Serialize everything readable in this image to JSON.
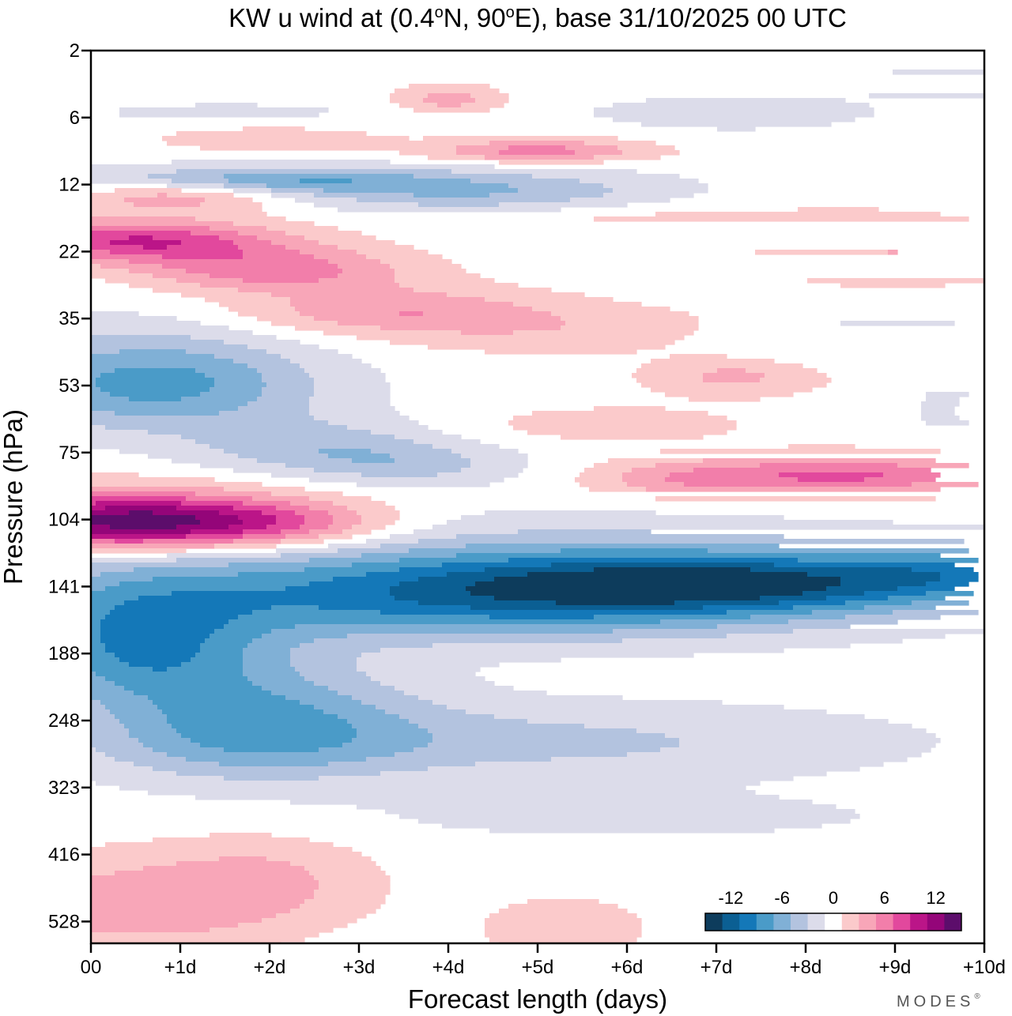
{
  "chart_data": {
    "type": "heatmap",
    "title": "KW u wind at (0.4°N, 90°E),  base 31/10/2025  00 UTC",
    "title_parts": {
      "prefix": "KW u wind at (0.4",
      "lat": "N, 90",
      "lon": "E),  base 31/10/2025  00 UTC",
      "degree": "o"
    },
    "xlabel": "Forecast length (days)",
    "ylabel": "Pressure (hPa)",
    "x_ticks": [
      "00",
      "+1d",
      "+2d",
      "+3d",
      "+4d",
      "+5d",
      "+6d",
      "+7d",
      "+8d",
      "+9d",
      "+10d"
    ],
    "xlim": [
      0,
      10
    ],
    "y_ticks": [
      "2",
      "6",
      "12",
      "22",
      "35",
      "53",
      "75",
      "104",
      "141",
      "188",
      "248",
      "323",
      "416",
      "528"
    ],
    "y_axis": "pressure, log-like scale, increasing downward",
    "colorbar": {
      "tick_labels": [
        "-12",
        "-6",
        "0",
        "6",
        "12"
      ],
      "tick_values": [
        -12,
        -6,
        0,
        6,
        12
      ],
      "levels": [
        -15,
        -13,
        -11,
        -9,
        -7,
        -5,
        -3,
        -1,
        1,
        3,
        5,
        7,
        9,
        11,
        13,
        15
      ],
      "colors": [
        "#0d3c5c",
        "#0b5f93",
        "#1478b8",
        "#4a9bc8",
        "#80b0d6",
        "#b3c3df",
        "#dcdcea",
        "#ffffff",
        "#fbcacb",
        "#f8a6b8",
        "#f27eaa",
        "#e2489d",
        "#bb1588",
        "#940579",
        "#5c0d6b"
      ]
    },
    "features": [
      {
        "name": "westerly-max-100hPa",
        "x0": 0,
        "x1": 3.6,
        "p": 104,
        "peak": 13
      },
      {
        "name": "easterly-jet-150hPa",
        "x0": 0,
        "x1": 10,
        "p": 160,
        "peak": -14
      },
      {
        "name": "easterly-layer-53hPa",
        "x0": 0,
        "x1": 5,
        "p": 55,
        "peak": -8
      },
      {
        "name": "westerly-layer-85hPa",
        "x0": 6.2,
        "x1": 10,
        "p": 85,
        "peak": 7
      },
      {
        "name": "westerly-layer-20hPa",
        "x0": 0,
        "x1": 3.8,
        "p": 20,
        "peak": 9
      },
      {
        "name": "westerly-lower-tropo",
        "x0": 0,
        "x1": 2.8,
        "p": 470,
        "peak": 4
      }
    ]
  },
  "branding": {
    "logo_text": "MODES",
    "mark": "®"
  },
  "colors": {
    "axis": "#000000",
    "background": "#ffffff"
  }
}
